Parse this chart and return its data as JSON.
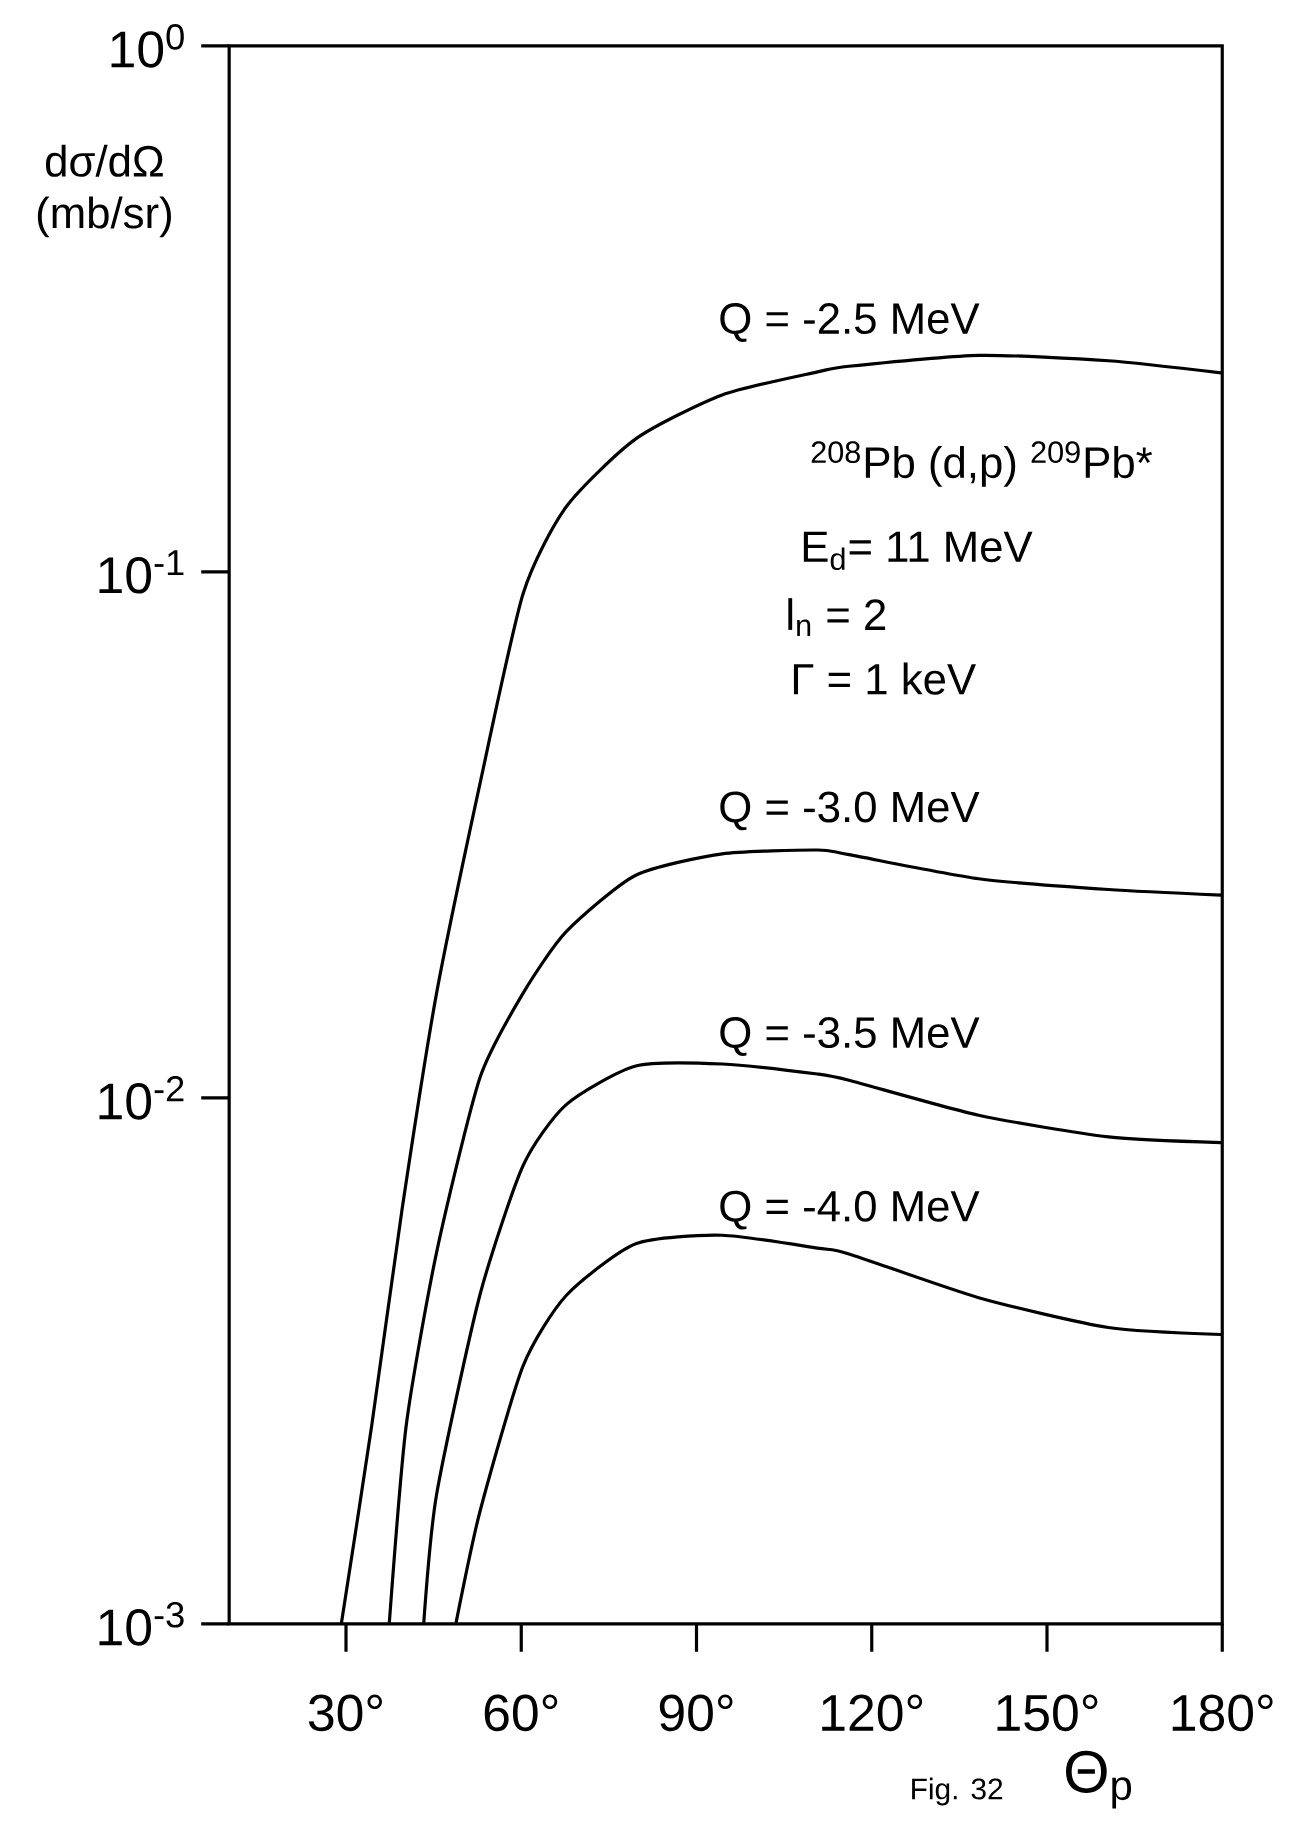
{
  "chart_data": {
    "type": "line",
    "xlabel": "Θ$_{p}$",
    "ylabel": "dσ/dΩ (mb/sr)",
    "log": "y",
    "line_style": "solid",
    "xlim": [
      10,
      180
    ],
    "ylim": [
      0.001,
      1
    ],
    "xticks": [
      {
        "value": 30,
        "label": "30°"
      },
      {
        "value": 60,
        "label": "60°"
      },
      {
        "value": 90,
        "label": "90°"
      },
      {
        "value": 120,
        "label": "120°"
      },
      {
        "value": 150,
        "label": "150°"
      },
      {
        "value": 180,
        "label": "180°"
      }
    ],
    "yticks": [
      {
        "value": 0.001,
        "label": "10$^{-3}$"
      },
      {
        "value": 0.01,
        "label": "10$^{-2}$"
      },
      {
        "value": 0.1,
        "label": "10$^{-1}$"
      },
      {
        "value": 1,
        "label": "10$^{0}$"
      }
    ],
    "series": [
      {
        "name": "Q = -2.5 MeV",
        "color": "#000000",
        "x": [
          29.2,
          34.4,
          39.6,
          45.5,
          52.9,
          60.3,
          67.7,
          79.6,
          94.4,
          110.7,
          116.1,
          138.3,
          160.5,
          179.8
        ],
        "values": [
          0.001,
          0.00238,
          0.00614,
          0.0158,
          0.0394,
          0.0908,
          0.133,
          0.179,
          0.217,
          0.24,
          0.246,
          0.258,
          0.252,
          0.239
        ]
      },
      {
        "name": "Q = -3.0 MeV",
        "color": "#000000",
        "x": [
          37.4,
          40.3,
          45.5,
          52.9,
          60.3,
          67.7,
          79.6,
          94.4,
          110.7,
          116.1,
          138.3,
          160.5,
          179.8
        ],
        "values": [
          0.001,
          0.00238,
          0.00508,
          0.0109,
          0.0158,
          0.0207,
          0.0265,
          0.0291,
          0.0296,
          0.029,
          0.0261,
          0.0249,
          0.0243
        ]
      },
      {
        "name": "Q = -3.5 MeV",
        "color": "#000000",
        "x": [
          43.3,
          45.5,
          52.9,
          60.3,
          67.7,
          79.6,
          94.4,
          110.7,
          116.1,
          138.3,
          160.5,
          179.8
        ],
        "values": [
          0.001,
          0.00176,
          0.00421,
          0.00743,
          0.00971,
          0.0115,
          0.0116,
          0.0111,
          0.0108,
          0.00927,
          0.00843,
          0.00822
        ]
      },
      {
        "name": "Q = -4.0 MeV",
        "color": "#000000",
        "x": [
          48.8,
          52.9,
          60.3,
          67.7,
          79.6,
          94.4,
          110.7,
          116.1,
          138.3,
          160.5,
          179.8
        ],
        "values": [
          0.001,
          0.00163,
          0.00309,
          0.00421,
          0.00528,
          0.00548,
          0.00518,
          0.00505,
          0.00417,
          0.00366,
          0.00355
        ]
      }
    ],
    "annotations": [
      "$^{208}$Pb (d,p) $^{209}$Pb*",
      "E$_{d}$= 11 MeV",
      "l$_{n}$ = 2",
      "Γ = 1 keV",
      "Fig. 32"
    ]
  }
}
